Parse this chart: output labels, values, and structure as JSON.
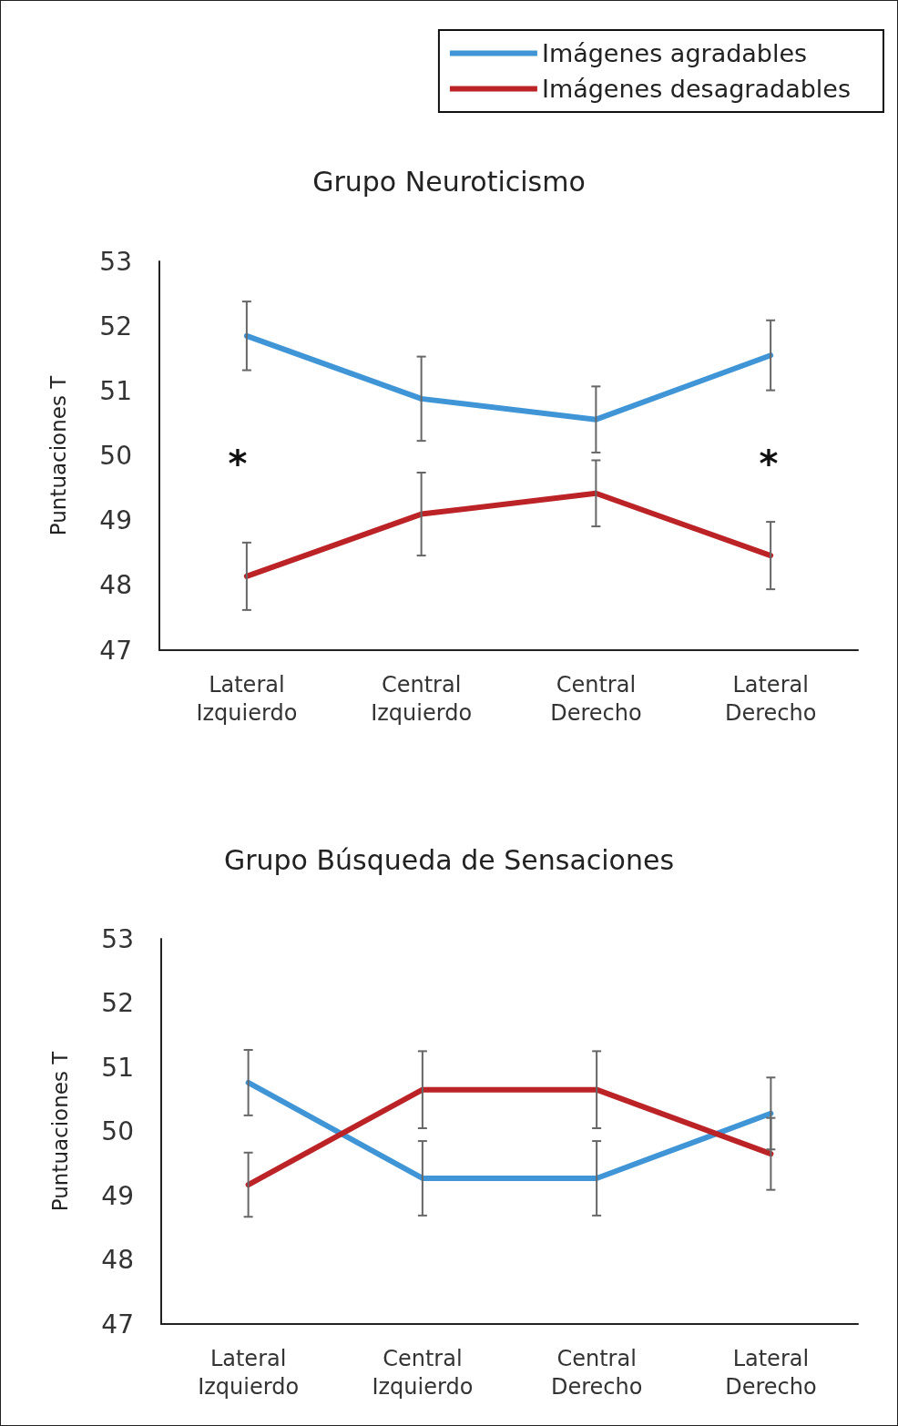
{
  "chart_data": [
    {
      "type": "line",
      "title": "Grupo Neuroticismo",
      "ylabel": "Puntuaciones T",
      "categories": [
        "Lateral\nIzquierdo",
        "Central\nIzquierdo",
        "Central\nDerecho",
        "Lateral\nDerecho"
      ],
      "series": [
        {
          "name": "Imágenes agradables",
          "color": "#3f95d6",
          "values": [
            51.85,
            50.88,
            50.56,
            51.55
          ],
          "errors": [
            0.53,
            0.65,
            0.51,
            0.54
          ]
        },
        {
          "name": "Imágenes desagradables",
          "color": "#bb2327",
          "values": [
            48.14,
            49.1,
            49.42,
            48.46
          ],
          "errors": [
            0.52,
            0.64,
            0.51,
            0.52
          ]
        }
      ],
      "ylim": [
        47,
        53
      ],
      "yticks": [
        47,
        48,
        49,
        50,
        51,
        52,
        53
      ],
      "grid": false,
      "legend": "top right",
      "marker": "none",
      "line_style": "solid",
      "annotations": [
        "*",
        "*"
      ]
    },
    {
      "type": "line",
      "title": "Grupo Búsqueda de Sensaciones",
      "ylabel": "Puntuaciones T",
      "categories": [
        "Lateral\nIzquierdo",
        "Central\nIzquierdo",
        "Central\nDerecho",
        "Lateral\nDerecho"
      ],
      "series": [
        {
          "color": "#3f95d6",
          "values": [
            50.76,
            49.27,
            49.27,
            50.28
          ],
          "errors": [
            0.51,
            0.58,
            0.58,
            0.56
          ]
        },
        {
          "color": "#bb2327",
          "values": [
            49.17,
            50.65,
            50.65,
            49.65
          ],
          "errors": [
            0.5,
            0.6,
            0.6,
            0.56
          ]
        }
      ],
      "ylim": [
        47,
        53
      ],
      "yticks": [
        47,
        48,
        49,
        50,
        51,
        52,
        53
      ],
      "grid": false,
      "legend": false,
      "marker": "none",
      "line_style": "solid"
    }
  ]
}
